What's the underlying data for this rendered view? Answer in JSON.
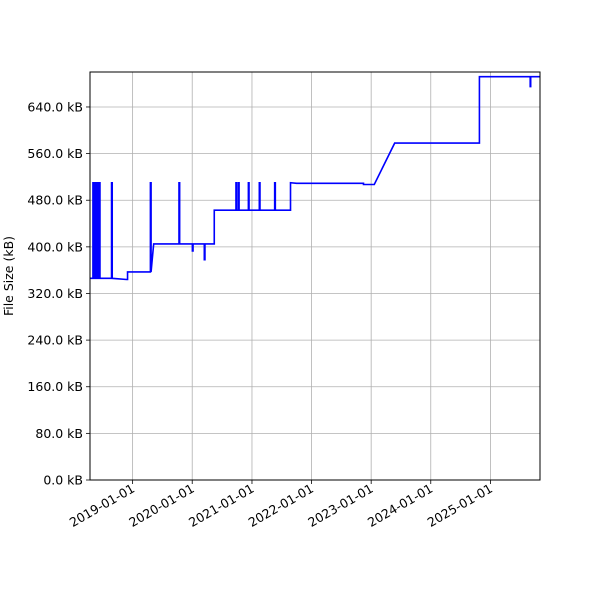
{
  "chart_data": {
    "type": "line",
    "title": "",
    "xlabel": "",
    "ylabel": "File Size (kB)",
    "grid": true,
    "line_color": "#0000ff",
    "x_axis_type": "date",
    "xlim": [
      "2018-04-15",
      "2025-10-31"
    ],
    "ylim": [
      0,
      700
    ],
    "x_ticks": [
      "2019-01-01",
      "2020-01-01",
      "2021-01-01",
      "2022-01-01",
      "2023-01-01",
      "2024-01-01",
      "2025-01-01"
    ],
    "x_tick_labels": [
      "2019-01-01",
      "2020-01-01",
      "2021-01-01",
      "2022-01-01",
      "2023-01-01",
      "2024-01-01",
      "2025-01-01"
    ],
    "y_ticks": [
      0,
      80,
      160,
      240,
      320,
      400,
      480,
      560,
      640
    ],
    "y_tick_labels": [
      "0.0 kB",
      "80.0 kB",
      "160.0 kB",
      "240.0 kB",
      "320.0 kB",
      "400.0 kB",
      "480.0 kB",
      "560.0 kB",
      "640.0 kB"
    ],
    "series": [
      {
        "name": "",
        "points": [
          [
            "2018-04-15",
            346
          ],
          [
            "2018-05-03",
            346
          ],
          [
            "2018-05-03",
            510
          ],
          [
            "2018-05-10",
            510
          ],
          [
            "2018-05-10",
            346
          ],
          [
            "2018-05-17",
            346
          ],
          [
            "2018-05-17",
            510
          ],
          [
            "2018-05-22",
            510
          ],
          [
            "2018-05-22",
            346
          ],
          [
            "2018-05-26",
            346
          ],
          [
            "2018-05-26",
            510
          ],
          [
            "2018-05-31",
            510
          ],
          [
            "2018-05-31",
            346
          ],
          [
            "2018-06-04",
            346
          ],
          [
            "2018-06-04",
            510
          ],
          [
            "2018-06-08",
            510
          ],
          [
            "2018-06-08",
            346
          ],
          [
            "2018-06-12",
            346
          ],
          [
            "2018-06-12",
            510
          ],
          [
            "2018-06-15",
            510
          ],
          [
            "2018-06-15",
            346
          ],
          [
            "2018-07-01",
            346
          ],
          [
            "2018-07-01",
            346
          ],
          [
            "2018-08-25",
            346
          ],
          [
            "2018-08-25",
            510
          ],
          [
            "2018-08-29",
            510
          ],
          [
            "2018-08-29",
            346
          ],
          [
            "2018-11-25",
            344
          ],
          [
            "2018-12-01",
            344
          ],
          [
            "2018-12-01",
            357
          ],
          [
            "2019-04-20",
            357
          ],
          [
            "2019-04-20",
            510
          ],
          [
            "2019-04-24",
            510
          ],
          [
            "2019-04-24",
            357
          ],
          [
            "2019-05-10",
            405
          ],
          [
            "2020-01-02",
            405
          ],
          [
            "2019-10-12",
            405
          ],
          [
            "2019-10-12",
            510
          ],
          [
            "2019-10-16",
            510
          ],
          [
            "2019-10-16",
            405
          ],
          [
            "2020-01-02",
            405
          ],
          [
            "2020-01-02",
            393
          ],
          [
            "2020-01-06",
            393
          ],
          [
            "2020-01-06",
            405
          ],
          [
            "2020-03-15",
            405
          ],
          [
            "2020-03-15",
            378
          ],
          [
            "2020-03-19",
            378
          ],
          [
            "2020-03-19",
            405
          ],
          [
            "2020-05-15",
            405
          ],
          [
            "2020-05-15",
            463
          ],
          [
            "2020-09-25",
            463
          ],
          [
            "2020-09-25",
            510
          ],
          [
            "2020-09-29",
            510
          ],
          [
            "2020-09-29",
            463
          ],
          [
            "2020-10-10",
            463
          ],
          [
            "2020-10-10",
            510
          ],
          [
            "2020-10-14",
            510
          ],
          [
            "2020-10-14",
            463
          ],
          [
            "2020-12-10",
            463
          ],
          [
            "2020-12-10",
            510
          ],
          [
            "2020-12-14",
            510
          ],
          [
            "2020-12-14",
            463
          ],
          [
            "2021-02-15",
            463
          ],
          [
            "2021-02-15",
            510
          ],
          [
            "2021-02-19",
            510
          ],
          [
            "2021-02-19",
            463
          ],
          [
            "2021-05-20",
            463
          ],
          [
            "2021-05-20",
            510
          ],
          [
            "2021-05-24",
            510
          ],
          [
            "2021-05-24",
            463
          ],
          [
            "2021-08-25",
            463
          ],
          [
            "2021-08-25",
            510
          ],
          [
            "2021-10-01",
            509
          ],
          [
            "2022-11-15",
            509
          ],
          [
            "2022-11-15",
            507
          ],
          [
            "2023-01-20",
            507
          ],
          [
            "2023-05-25",
            578
          ],
          [
            "2024-10-25",
            578
          ],
          [
            "2024-10-25",
            692
          ],
          [
            "2025-09-01",
            692
          ],
          [
            "2025-09-01",
            675
          ],
          [
            "2025-09-04",
            675
          ],
          [
            "2025-09-04",
            692
          ],
          [
            "2025-11-20",
            692
          ],
          [
            "2025-11-20",
            697
          ],
          [
            "2026-04-05",
            697
          ]
        ]
      }
    ]
  }
}
